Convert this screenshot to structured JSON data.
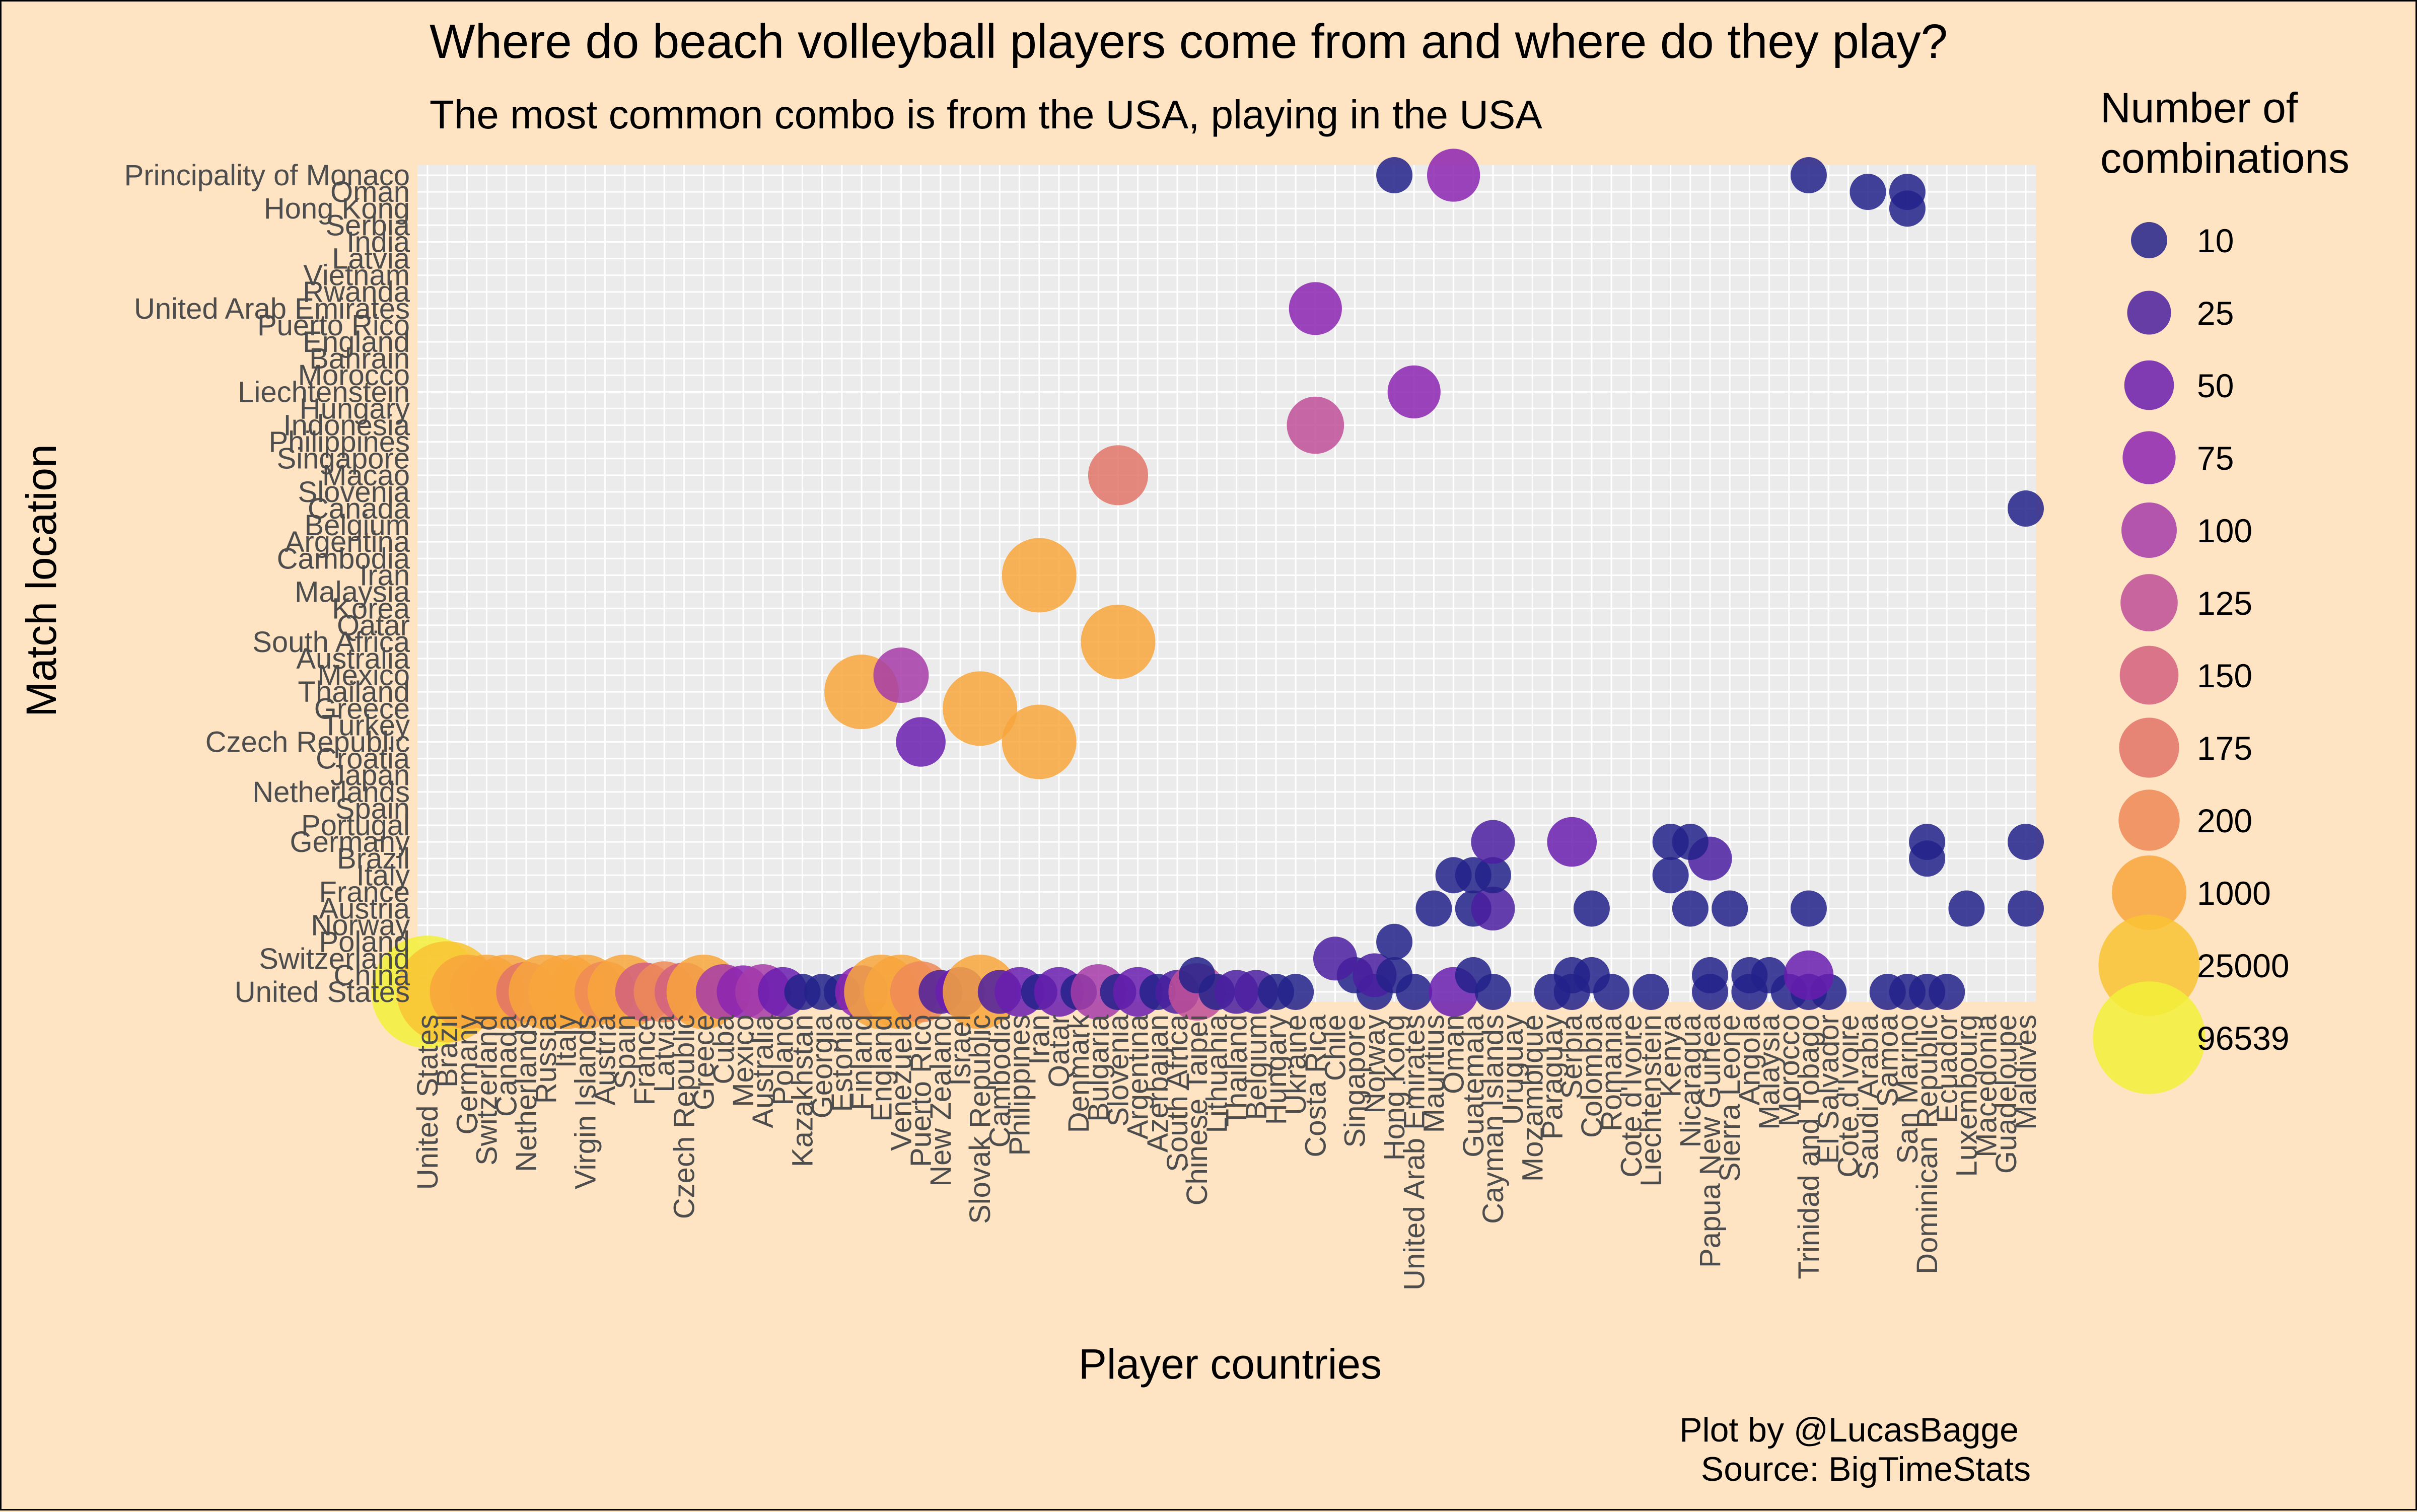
{
  "chart_data": {
    "type": "scatter",
    "title": "Where do beach volleyball players come from and where do they play?",
    "subtitle": "The most common combo is from the USA, playing in the USA",
    "xlabel": "Player countries",
    "ylabel": "Match location",
    "caption_line1": "Plot by @LucasBagge",
    "caption_line2": "Source: BigTimeStats",
    "legend_title_line1": "Number of",
    "legend_title_line2": "combinations",
    "legend_position": "right",
    "grid": true,
    "size_scale": {
      "breaks": [
        10,
        25,
        50,
        75,
        100,
        125,
        150,
        175,
        200,
        1000,
        25000,
        96539
      ],
      "colors": [
        "#23228A",
        "#4B1FA0",
        "#6A1DAF",
        "#8C24B2",
        "#A63CA8",
        "#BF4F98",
        "#D2607F",
        "#E27469",
        "#EE8A57",
        "#F8A63C",
        "#F9C334",
        "#F2F03A"
      ]
    },
    "x_categories": [
      "United States",
      "Brazil",
      "Germany",
      "Switzerland",
      "Canada",
      "Netherlands",
      "Russia",
      "Italy",
      "Virgin Islands",
      "Austria",
      "Spain",
      "France",
      "Latvia",
      "Czech Republic",
      "Greece",
      "Cuba",
      "Mexico",
      "Australia",
      "Poland",
      "Kazakhstan",
      "Georgia",
      "Estonia",
      "Finland",
      "England",
      "Venezuela",
      "Puerto Rico",
      "New Zealand",
      "Israel",
      "Slovak Republic",
      "Cambodia",
      "Philippines",
      "Iran",
      "Qatar",
      "Denmark",
      "Bulgaria",
      "Slovenia",
      "Argentina",
      "Azerbaijan",
      "South Africa",
      "Chinese Taipei",
      "Lithuania",
      "Thailand",
      "Belgium",
      "Hungary",
      "Ukraine",
      "Costa Rica",
      "Chile",
      "Singapore",
      "Norway",
      "Hong Kong",
      "United Arab Emirates",
      "Mauritius",
      "Oman",
      "Guatemala",
      "Cayman Islands",
      "Uruguay",
      "Mozambique",
      "Paraguay",
      "Serbia",
      "Colombia",
      "Romania",
      "Cote d'Ivoire",
      "Liechtenstein",
      "Kenya",
      "Nicaragua",
      "Papua New Guinea",
      "Sierra Leone",
      "Angola",
      "Malaysia",
      "Morocco",
      "Trinidad and Tobago",
      "El Salvador",
      "Cote d'Ivoire",
      "Saudi Arabia",
      "Samoa",
      "San Marino",
      "Dominican Republic",
      "Ecuador",
      "Luxembourg",
      "Macedonia",
      "Guadeloupe",
      "Maldives"
    ],
    "y_categories": [
      "United States",
      "China",
      "Switzerland",
      "Poland",
      "Norway",
      "Austria",
      "France",
      "Italy",
      "Brazil",
      "Germany",
      "Portugal",
      "Spain",
      "Netherlands",
      "Japan",
      "Croatia",
      "Czech Republic",
      "Turkey",
      "Greece",
      "Thailand",
      "Mexico",
      "Australia",
      "South Africa",
      "Qatar",
      "Korea",
      "Malaysia",
      "Iran",
      "Cambodia",
      "Argentina",
      "Belgium",
      "Canada",
      "Slovenia",
      "Macao",
      "Singapore",
      "Philippines",
      "Indonesia",
      "Hungary",
      "Liechtenstein",
      "Morocco",
      "Bahrain",
      "England",
      "Puerto Rico",
      "United Arab Emirates",
      "Rwanda",
      "Vietnam",
      "Latvia",
      "India",
      "Serbia",
      "Hong Kong",
      "Oman",
      "Principality of Monaco"
    ],
    "x_tick_labels": [
      "United States",
      "Brazil",
      "Germany",
      "Switzerland",
      "Canada",
      "Netherlands",
      "Russia",
      "Italy",
      "Virgin Islands",
      "Austria",
      "Spain",
      "France",
      "Latvia",
      "Czech Republic",
      "Greece",
      "Cuba",
      "Mexico",
      "Australia",
      "Poland",
      "Kazakhstan",
      "Georgia",
      "Estonia",
      "Finland",
      "England",
      "Venezuela",
      "Puerto Rico",
      "New Zealand",
      "Israel",
      "Slovak Republic",
      "Cambodia",
      "Philippines",
      "Iran",
      "Qatar",
      "Denmark",
      "Bulgaria",
      "Slovenia",
      "Argentina",
      "Azerbaijan",
      "South Africa",
      "Chinese Taipei",
      "Lithuania",
      "Thailand",
      "Belgium",
      "Hungary",
      "Ukraine",
      "Costa Rica",
      "Chile",
      "Singapore",
      "Norway",
      "Hong Kong",
      "United Arab Emirates",
      "Mauritius",
      "Oman",
      "Guatemala",
      "Cayman Islands",
      "Uruguay",
      "Mozambique",
      "Paraguay",
      "Serbia",
      "Colombia",
      "Romania",
      "Cote d'Ivoire",
      "Liechtenstein",
      "Kenya",
      "Nicaragua",
      "Papua New Guinea",
      "Sierra Leone",
      "Angola",
      "Malaysia",
      "Morocco",
      "Trinidad and Tobago",
      "El Salvador",
      "Cote d'Ivoire",
      "Saudi Arabia",
      "Samoa",
      "San Marino",
      "Dominican Republic",
      "Ecuador",
      "Luxembourg",
      "Macedonia",
      "Guadeloupe",
      "Maldives"
    ],
    "y_tick_labels": [
      "United States",
      "China",
      "Switzerland",
      "Poland",
      "Norway",
      "Austria",
      "France",
      "Italy",
      "Brazil",
      "Germany",
      "Portugal",
      "Spain",
      "Netherlands",
      "Japan",
      "Croatia",
      "Czech Republic",
      "Turkey",
      "Greece",
      "Thailand",
      "Mexico",
      "Australia",
      "South Africa",
      "Qatar",
      "Korea",
      "Malaysia",
      "Iran",
      "Cambodia",
      "Argentina",
      "Belgium",
      "Canada",
      "Slovenia",
      "Macao",
      "Singapore",
      "Philippines",
      "Indonesia",
      "Hungary",
      "Liechtenstein",
      "Morocco",
      "Bahrain",
      "England",
      "Puerto Rico",
      "United Arab Emirates",
      "Rwanda",
      "Vietnam",
      "Latvia",
      "India",
      "Serbia",
      "Hong Kong",
      "Oman",
      "Principality of Monaco"
    ],
    "points": [
      {
        "x": "United States",
        "y": "United States",
        "value": 96539
      },
      {
        "x": "Brazil",
        "y": "United States",
        "value": 25000
      },
      {
        "x": "Germany",
        "y": "United States",
        "value": 1000
      },
      {
        "x": "Switzerland",
        "y": "United States",
        "value": 1000
      },
      {
        "x": "Canada",
        "y": "United States",
        "value": 1000
      },
      {
        "x": "Netherlands",
        "y": "United States",
        "value": 175
      },
      {
        "x": "Russia",
        "y": "United States",
        "value": 1000
      },
      {
        "x": "Italy",
        "y": "United States",
        "value": 1000
      },
      {
        "x": "Virgin Islands",
        "y": "United States",
        "value": 1000
      },
      {
        "x": "Austria",
        "y": "United States",
        "value": 200
      },
      {
        "x": "Spain",
        "y": "United States",
        "value": 1000
      },
      {
        "x": "France",
        "y": "United States",
        "value": 150
      },
      {
        "x": "Latvia",
        "y": "United States",
        "value": 200
      },
      {
        "x": "Czech Republic",
        "y": "United States",
        "value": 150
      },
      {
        "x": "Greece",
        "y": "United States",
        "value": 1000
      },
      {
        "x": "Cuba",
        "y": "United States",
        "value": 100
      },
      {
        "x": "Mexico",
        "y": "United States",
        "value": 75
      },
      {
        "x": "Australia",
        "y": "United States",
        "value": 100
      },
      {
        "x": "Poland",
        "y": "United States",
        "value": 50
      },
      {
        "x": "Kazakhstan",
        "y": "United States",
        "value": 10
      },
      {
        "x": "Georgia",
        "y": "United States",
        "value": 10
      },
      {
        "x": "Estonia",
        "y": "United States",
        "value": 10
      },
      {
        "x": "Finland",
        "y": "United States",
        "value": 75
      },
      {
        "x": "England",
        "y": "United States",
        "value": 1000
      },
      {
        "x": "Venezuela",
        "y": "United States",
        "value": 1000
      },
      {
        "x": "Puerto Rico",
        "y": "United States",
        "value": 200
      },
      {
        "x": "New Zealand",
        "y": "United States",
        "value": 25
      },
      {
        "x": "Israel",
        "y": "United States",
        "value": 50
      },
      {
        "x": "Slovak Republic",
        "y": "United States",
        "value": 1000
      },
      {
        "x": "Cambodia",
        "y": "United States",
        "value": 25
      },
      {
        "x": "Philippines",
        "y": "United States",
        "value": 50
      },
      {
        "x": "Iran",
        "y": "United States",
        "value": 10
      },
      {
        "x": "Qatar",
        "y": "United States",
        "value": 50
      },
      {
        "x": "Denmark",
        "y": "United States",
        "value": 10
      },
      {
        "x": "Bulgaria",
        "y": "United States",
        "value": 100
      },
      {
        "x": "Slovenia",
        "y": "United States",
        "value": 10
      },
      {
        "x": "Argentina",
        "y": "United States",
        "value": 50
      },
      {
        "x": "Azerbaijan",
        "y": "United States",
        "value": 10
      },
      {
        "x": "South Africa",
        "y": "United States",
        "value": 25
      },
      {
        "x": "Chinese Taipei",
        "y": "United States",
        "value": 125
      },
      {
        "x": "Lithuania",
        "y": "United States",
        "value": 10
      },
      {
        "x": "Thailand",
        "y": "United States",
        "value": 25
      },
      {
        "x": "Belgium",
        "y": "United States",
        "value": 25
      },
      {
        "x": "Hungary",
        "y": "United States",
        "value": 10
      },
      {
        "x": "Ukraine",
        "y": "United States",
        "value": 10
      },
      {
        "x": "Norway",
        "y": "United States",
        "value": 10
      },
      {
        "x": "United Arab Emirates",
        "y": "United States",
        "value": 10
      },
      {
        "x": "Oman",
        "y": "United States",
        "value": 50
      },
      {
        "x": "Cayman Islands",
        "y": "United States",
        "value": 10
      },
      {
        "x": "Paraguay",
        "y": "United States",
        "value": 10
      },
      {
        "x": "Serbia",
        "y": "United States",
        "value": 10
      },
      {
        "x": "Romania",
        "y": "United States",
        "value": 10
      },
      {
        "x": "Liechtenstein",
        "y": "United States",
        "value": 10
      },
      {
        "x": "Papua New Guinea",
        "y": "United States",
        "value": 10
      },
      {
        "x": "Angola",
        "y": "United States",
        "value": 10
      },
      {
        "x": "Morocco",
        "y": "United States",
        "value": 10
      },
      {
        "x": "Trinidad and Tobago",
        "y": "United States",
        "value": 10
      },
      {
        "x": "El Salvador",
        "y": "United States",
        "value": 10
      },
      {
        "x": "San Marino",
        "y": "United States",
        "value": 10
      },
      {
        "x": "Samoa",
        "y": "United States",
        "value": 10
      },
      {
        "x": "Dominican Republic",
        "y": "United States",
        "value": 10
      },
      {
        "x": "Ecuador",
        "y": "United States",
        "value": 10
      },
      {
        "x": "Chinese Taipei",
        "y": "China",
        "value": 10
      },
      {
        "x": "Singapore",
        "y": "China",
        "value": 10
      },
      {
        "x": "Norway",
        "y": "China",
        "value": 25
      },
      {
        "x": "Hong Kong",
        "y": "China",
        "value": 10
      },
      {
        "x": "Guatemala",
        "y": "China",
        "value": 10
      },
      {
        "x": "Serbia",
        "y": "China",
        "value": 10
      },
      {
        "x": "Colombia",
        "y": "China",
        "value": 10
      },
      {
        "x": "Papua New Guinea",
        "y": "China",
        "value": 10
      },
      {
        "x": "Angola",
        "y": "China",
        "value": 10
      },
      {
        "x": "Malaysia",
        "y": "China",
        "value": 10
      },
      {
        "x": "Trinidad and Tobago",
        "y": "China",
        "value": 50
      },
      {
        "x": "Chile",
        "y": "Switzerland",
        "value": 25
      },
      {
        "x": "Hong Kong",
        "y": "Poland",
        "value": 10
      },
      {
        "x": "Mauritius",
        "y": "Austria",
        "value": 10
      },
      {
        "x": "Guatemala",
        "y": "Austria",
        "value": 10
      },
      {
        "x": "Cayman Islands",
        "y": "Austria",
        "value": 25
      },
      {
        "x": "Colombia",
        "y": "Austria",
        "value": 10
      },
      {
        "x": "Nicaragua",
        "y": "Austria",
        "value": 10
      },
      {
        "x": "Sierra Leone",
        "y": "Austria",
        "value": 10
      },
      {
        "x": "Trinidad and Tobago",
        "y": "Austria",
        "value": 10
      },
      {
        "x": "Luxembourg",
        "y": "Austria",
        "value": 10
      },
      {
        "x": "Maldives",
        "y": "Austria",
        "value": 10
      },
      {
        "x": "Oman",
        "y": "Italy",
        "value": 10
      },
      {
        "x": "Guatemala",
        "y": "Italy",
        "value": 10
      },
      {
        "x": "Cayman Islands",
        "y": "Italy",
        "value": 10
      },
      {
        "x": "Kenya",
        "y": "Italy",
        "value": 10
      },
      {
        "x": "Papua New Guinea",
        "y": "Brazil",
        "value": 25
      },
      {
        "x": "Dominican Republic",
        "y": "Brazil",
        "value": 10
      },
      {
        "x": "Cayman Islands",
        "y": "Germany",
        "value": 25
      },
      {
        "x": "Serbia",
        "y": "Germany",
        "value": 50
      },
      {
        "x": "Kenya",
        "y": "Germany",
        "value": 10
      },
      {
        "x": "Nicaragua",
        "y": "Germany",
        "value": 10
      },
      {
        "x": "Dominican Republic",
        "y": "Germany",
        "value": 10
      },
      {
        "x": "Maldives",
        "y": "Germany",
        "value": 10
      },
      {
        "x": "Iran",
        "y": "Czech Republic",
        "value": 1000
      },
      {
        "x": "Puerto Rico",
        "y": "Czech Republic",
        "value": 50
      },
      {
        "x": "Slovak Republic",
        "y": "Greece",
        "value": 1000
      },
      {
        "x": "Finland",
        "y": "Thailand",
        "value": 1000
      },
      {
        "x": "Venezuela",
        "y": "Mexico",
        "value": 100
      },
      {
        "x": "Slovenia",
        "y": "South Africa",
        "value": 1000
      },
      {
        "x": "Iran",
        "y": "Iran",
        "value": 1000
      },
      {
        "x": "Slovenia",
        "y": "Macao",
        "value": 175
      },
      {
        "x": "Costa Rica",
        "y": "Indonesia",
        "value": 125
      },
      {
        "x": "Oman",
        "y": "Principality of Monaco",
        "value": 75
      },
      {
        "x": "Hong Kong",
        "y": "Principality of Monaco",
        "value": 10
      },
      {
        "x": "Trinidad and Tobago",
        "y": "Principality of Monaco",
        "value": 10
      },
      {
        "x": "Saudi Arabia",
        "y": "Oman",
        "value": 10
      },
      {
        "x": "San Marino",
        "y": "Oman",
        "value": 10
      },
      {
        "x": "San Marino",
        "y": "Hong Kong",
        "value": 10
      },
      {
        "x": "United Arab Emirates",
        "y": "Liechtenstein",
        "value": 75
      },
      {
        "x": "Costa Rica",
        "y": "United Arab Emirates",
        "value": 75
      },
      {
        "x": "Maldives",
        "y": "Canada",
        "value": 10
      }
    ]
  }
}
